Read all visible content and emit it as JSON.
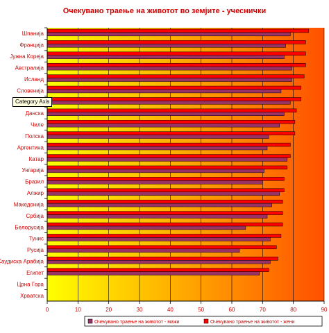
{
  "colors": {
    "title": "#d40000",
    "label": "#d40000",
    "bg_left": "#ffff00",
    "bg_right": "#ff5000",
    "male": "#993366",
    "female": "#ff0000",
    "bar_outline": "#000000",
    "grid": "#000000"
  },
  "tooltip": {
    "text": "Category Axis"
  },
  "chart_data": {
    "type": "bar",
    "orientation": "horizontal",
    "title": "Очекувано траење на животот во земјите - учеснички",
    "xlabel": "",
    "ylabel": "",
    "xlim": [
      0,
      90
    ],
    "xticks": [
      0,
      10,
      20,
      30,
      40,
      50,
      60,
      70,
      80,
      90
    ],
    "grid": true,
    "legend_position": "bottom",
    "categories": [
      "Шпанија",
      "Франција",
      "Јужна Кореја",
      "Австралија",
      "Исланд",
      "Словенија",
      "Холандија",
      "Данска",
      "Чиле",
      "Полска",
      "Аргентина",
      "Катар",
      "Унгарија",
      "Бразил",
      "Алжир",
      "Македонија",
      "Србија",
      "Белорусија",
      "Тунис",
      "Русија",
      "Саудиска Арабија",
      "Египет",
      "Црна Гора",
      "Хрватска"
    ],
    "series": [
      {
        "name": "Очекувано траење на животот - мажи",
        "values": [
          79,
          77.5,
          77,
          79.5,
          79.5,
          76,
          79,
          77,
          75.5,
          72,
          71.5,
          78,
          70.5,
          70,
          75.5,
          73,
          71.5,
          64.5,
          72.5,
          62.5,
          72.5,
          69,
          null,
          null
        ]
      },
      {
        "name": "Очекувано траење на животот - жени",
        "values": [
          85,
          84,
          84,
          84,
          83.5,
          82.5,
          82.5,
          81,
          80.5,
          80.5,
          79,
          79,
          78,
          77,
          77,
          76.5,
          76.5,
          76.5,
          76,
          74.5,
          75,
          72,
          null,
          null
        ]
      }
    ]
  }
}
